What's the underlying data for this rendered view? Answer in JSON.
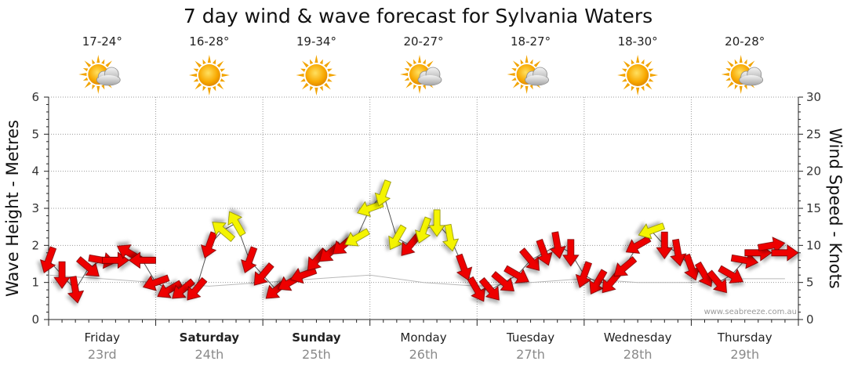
{
  "chart_data": {
    "type": "line",
    "title": "7 day wind & wave forecast for Sylvania Waters",
    "ylabel_left": "Wave Height - Metres",
    "ylabel_right": "Wind Speed - Knots",
    "ylim_left": [
      0,
      6
    ],
    "ylim_right": [
      0,
      30
    ],
    "yticks_left": [
      "0",
      "1",
      "2",
      "3",
      "4",
      "5",
      "6"
    ],
    "yticks_right": [
      "0",
      "5",
      "10",
      "15",
      "20",
      "25",
      "30"
    ],
    "grid": true,
    "credit": "www.seabreeze.com.au",
    "days": [
      {
        "day": "Friday",
        "date": "23rd",
        "bold": false,
        "temp": "17-24°",
        "weather": "partly-cloudy"
      },
      {
        "day": "Saturday",
        "date": "24th",
        "bold": true,
        "temp": "16-28°",
        "weather": "sunny"
      },
      {
        "day": "Sunday",
        "date": "25th",
        "bold": true,
        "temp": "19-34°",
        "weather": "sunny"
      },
      {
        "day": "Monday",
        "date": "26th",
        "bold": false,
        "temp": "20-27°",
        "weather": "partly-cloudy"
      },
      {
        "day": "Tuesday",
        "date": "27th",
        "bold": false,
        "temp": "18-27°",
        "weather": "partly-cloudy"
      },
      {
        "day": "Wednesday",
        "date": "28th",
        "bold": false,
        "temp": "18-30°",
        "weather": "sunny"
      },
      {
        "day": "Thursday",
        "date": "29th",
        "bold": false,
        "temp": "20-28°",
        "weather": "partly-cloudy"
      }
    ],
    "wind_series": {
      "name": "Wind",
      "x_hours": [
        0,
        3,
        6,
        9,
        12,
        15,
        18,
        21,
        24,
        27,
        30,
        33,
        36,
        39,
        42,
        45,
        48,
        51,
        54,
        57,
        60,
        63,
        66,
        69,
        72,
        75,
        78,
        81,
        84,
        87,
        90,
        93,
        96,
        99,
        102,
        105,
        108,
        111,
        114,
        117,
        120,
        123,
        126,
        129,
        132,
        135,
        138,
        141,
        144,
        147,
        150,
        153,
        156,
        159,
        162,
        165
      ],
      "knots": [
        8,
        6,
        4,
        7,
        8,
        8,
        9,
        8,
        5,
        4,
        4,
        4,
        10,
        12,
        13,
        8,
        6,
        4,
        5,
        6,
        8,
        9,
        10,
        11,
        15,
        17,
        11,
        10,
        12,
        13,
        11,
        7,
        4,
        4,
        5,
        6,
        8,
        9,
        10,
        9,
        6,
        5,
        5,
        7,
        10,
        12,
        10,
        9,
        7,
        6,
        5,
        6,
        8,
        9,
        10,
        9
      ],
      "dir_deg": [
        200,
        180,
        170,
        130,
        100,
        90,
        300,
        270,
        250,
        240,
        230,
        220,
        200,
        310,
        330,
        200,
        220,
        230,
        240,
        250,
        220,
        230,
        230,
        240,
        250,
        200,
        210,
        220,
        200,
        180,
        170,
        160,
        150,
        140,
        130,
        120,
        140,
        160,
        170,
        180,
        200,
        210,
        220,
        230,
        240,
        250,
        180,
        170,
        160,
        150,
        140,
        120,
        100,
        90,
        80,
        90
      ],
      "strong_threshold_knots": 11
    },
    "wave_series": {
      "name": "Wave height",
      "x_hours": [
        0,
        12,
        24,
        36,
        48,
        60,
        72,
        84,
        96,
        108,
        120,
        132,
        144,
        156,
        165
      ],
      "metres": [
        1.2,
        1.1,
        1.0,
        0.9,
        1.0,
        1.1,
        1.2,
        1.0,
        0.9,
        1.0,
        1.1,
        1.0,
        1.0,
        1.1,
        1.1
      ]
    },
    "colors": {
      "strong_wind": "#f4f400",
      "normal_wind": "#ee0000",
      "arrow_stroke": "#7a0000",
      "strong_stroke": "#8a8a00",
      "grid": "#9a9a9a"
    }
  }
}
